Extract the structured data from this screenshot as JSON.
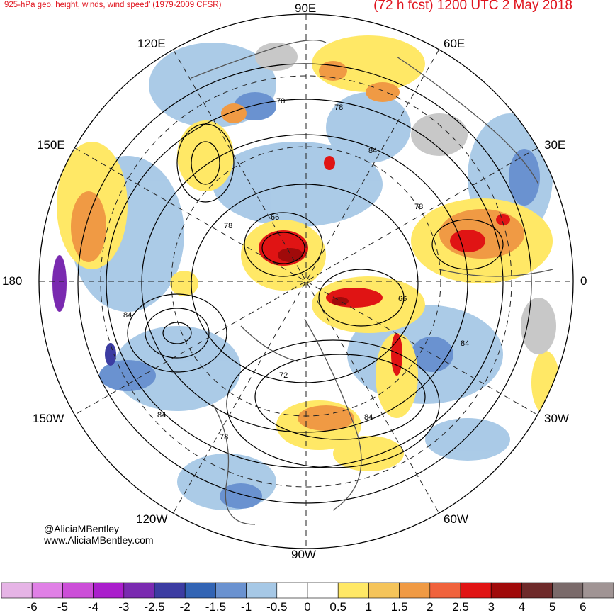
{
  "header": {
    "title_left": "925-hPa geo. height, winds, wind speed’ (1979-2009 CFSR)",
    "title_right": "(72 h fcst) 1200 UTC 2 May 2018"
  },
  "map": {
    "projection": "north-polar-stereographic",
    "longitude_labels": {
      "top": "90E",
      "top_right": "60E",
      "right_upper": "30E",
      "right": "0",
      "right_lower": "30W",
      "bottom_right": "60W",
      "bottom": "90W",
      "bottom_left": "120W",
      "left_lower": "150W",
      "left": "180",
      "left_upper": "150E",
      "top_left": "120E"
    },
    "contour_labels": [
      "78",
      "78",
      "84",
      "66",
      "78",
      "78",
      "66",
      "84",
      "84",
      "84",
      "72",
      "78",
      "84"
    ]
  },
  "credits": {
    "handle": "@AliciaMBentley",
    "website": "www.AliciaMBentley.com"
  },
  "colorbar": {
    "labels": [
      "-6",
      "-5",
      "-4",
      "-3",
      "-2.5",
      "-2",
      "-1.5",
      "-1",
      "-0.5",
      "0",
      "0.5",
      "1",
      "1.5",
      "2",
      "2.5",
      "3",
      "4",
      "5",
      "6"
    ],
    "colors": [
      "#e6b4e6",
      "#e080e6",
      "#cc4ed8",
      "#aa1ecc",
      "#7a2ab0",
      "#3c3ca2",
      "#3264b4",
      "#6a92d0",
      "#a6c8e6",
      "#ffffff",
      "#ffffff",
      "#ffe866",
      "#f5c45a",
      "#f09a44",
      "#f0623c",
      "#e01414",
      "#a00a0a",
      "#6e2a2a",
      "#7a6a6a",
      "#a09494"
    ]
  }
}
